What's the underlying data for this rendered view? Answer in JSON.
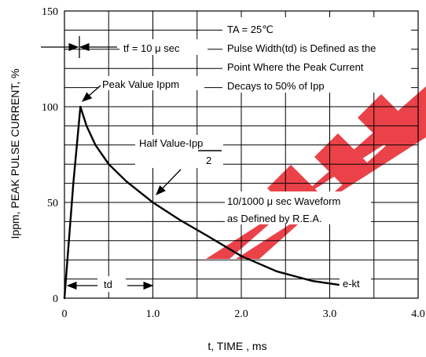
{
  "chart_data": {
    "type": "line",
    "title": "",
    "xlabel": "t, TIME , ms",
    "ylabel": "Ippm, PEAK PULSE CURRENT, %",
    "xlim": [
      0,
      4.0
    ],
    "ylim": [
      0,
      150
    ],
    "x_ticks": [
      {
        "value": 0,
        "label": "0"
      },
      {
        "value": 1.0,
        "label": "1.0"
      },
      {
        "value": 2.0,
        "label": "2.0"
      },
      {
        "value": 3.0,
        "label": "3.0"
      },
      {
        "value": 4.0,
        "label": "4.0"
      }
    ],
    "y_ticks": [
      {
        "value": 0,
        "label": "0"
      },
      {
        "value": 50,
        "label": "50"
      },
      {
        "value": 100,
        "label": "100"
      },
      {
        "value": 150,
        "label": "150"
      }
    ],
    "grid": true,
    "series": [
      {
        "color": "#000000",
        "x": [
          0.0,
          0.1,
          0.18,
          0.25,
          0.35,
          0.5,
          0.7,
          1.0,
          1.3,
          1.6,
          2.0,
          2.4,
          2.8,
          3.1
        ],
        "y": [
          0,
          60,
          100,
          90,
          80,
          70,
          61,
          50,
          41,
          33,
          22,
          14,
          9,
          7
        ]
      }
    ],
    "annotations": {
      "ta": "TA = 25℃",
      "pulse_width_line1": "Pulse Width(td) is Defined as the",
      "pulse_width_line2": "Point Where the Peak Current",
      "pulse_width_line3": "Decays to 50% of Ipp",
      "tf": "tf = 10 μ sec",
      "peak": "Peak Value Ippm",
      "half_value": "Half Value-Ipp",
      "half_value_denominator": "2",
      "waveform_line1": "10/1000 μ sec Waveform",
      "waveform_line2": "as Defined by R.E.A.",
      "td": "td",
      "ekt": "e-kt"
    }
  },
  "watermark": {
    "color": "#e8222a"
  }
}
